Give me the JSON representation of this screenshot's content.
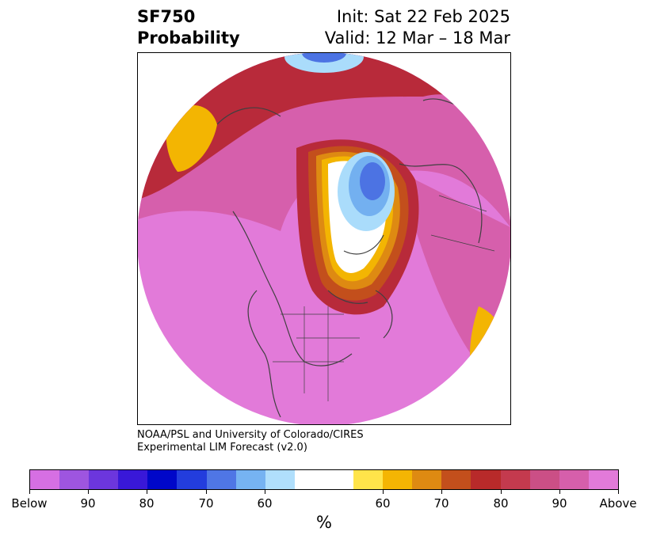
{
  "title": {
    "variable": "SF750",
    "subtitle": "Probability",
    "init": "Init: Sat 22 Feb 2025",
    "valid": "Valid: 12 Mar – 18 Mar"
  },
  "credit": {
    "line1": "NOAA/PSL and University of Colorado/CIRES",
    "line2": "Experimental LIM Forecast (v2.0)"
  },
  "map": {
    "projection": "north-polar-stereographic",
    "colors": {
      "above_max": "#e27ad9",
      "above_90": "#d65fac",
      "above_80": "#b82a3a",
      "above_70": "#c34f1c",
      "above_65": "#de8a12",
      "above_60": "#f3b502",
      "below_60": "#aadcfb",
      "below_70": "#73b0f0",
      "below_80": "#4c73e3",
      "coast": "#404040"
    }
  },
  "colorbar": {
    "unit": "%",
    "colors": [
      "#d66fe3",
      "#9e55e0",
      "#6c36dd",
      "#3918d8",
      "#0007c9",
      "#233ddd",
      "#4f76e5",
      "#76b3f2",
      "#b0dffc",
      "#ffffff",
      "#ffe44a",
      "#f4b503",
      "#de8a12",
      "#c34f1c",
      "#b82a2a",
      "#c43a4e",
      "#cb4f86",
      "#d65fab",
      "#e27ad9"
    ],
    "tick_labels": [
      "Below",
      "90",
      "80",
      "70",
      "60",
      "60",
      "70",
      "80",
      "90",
      "Above"
    ]
  }
}
